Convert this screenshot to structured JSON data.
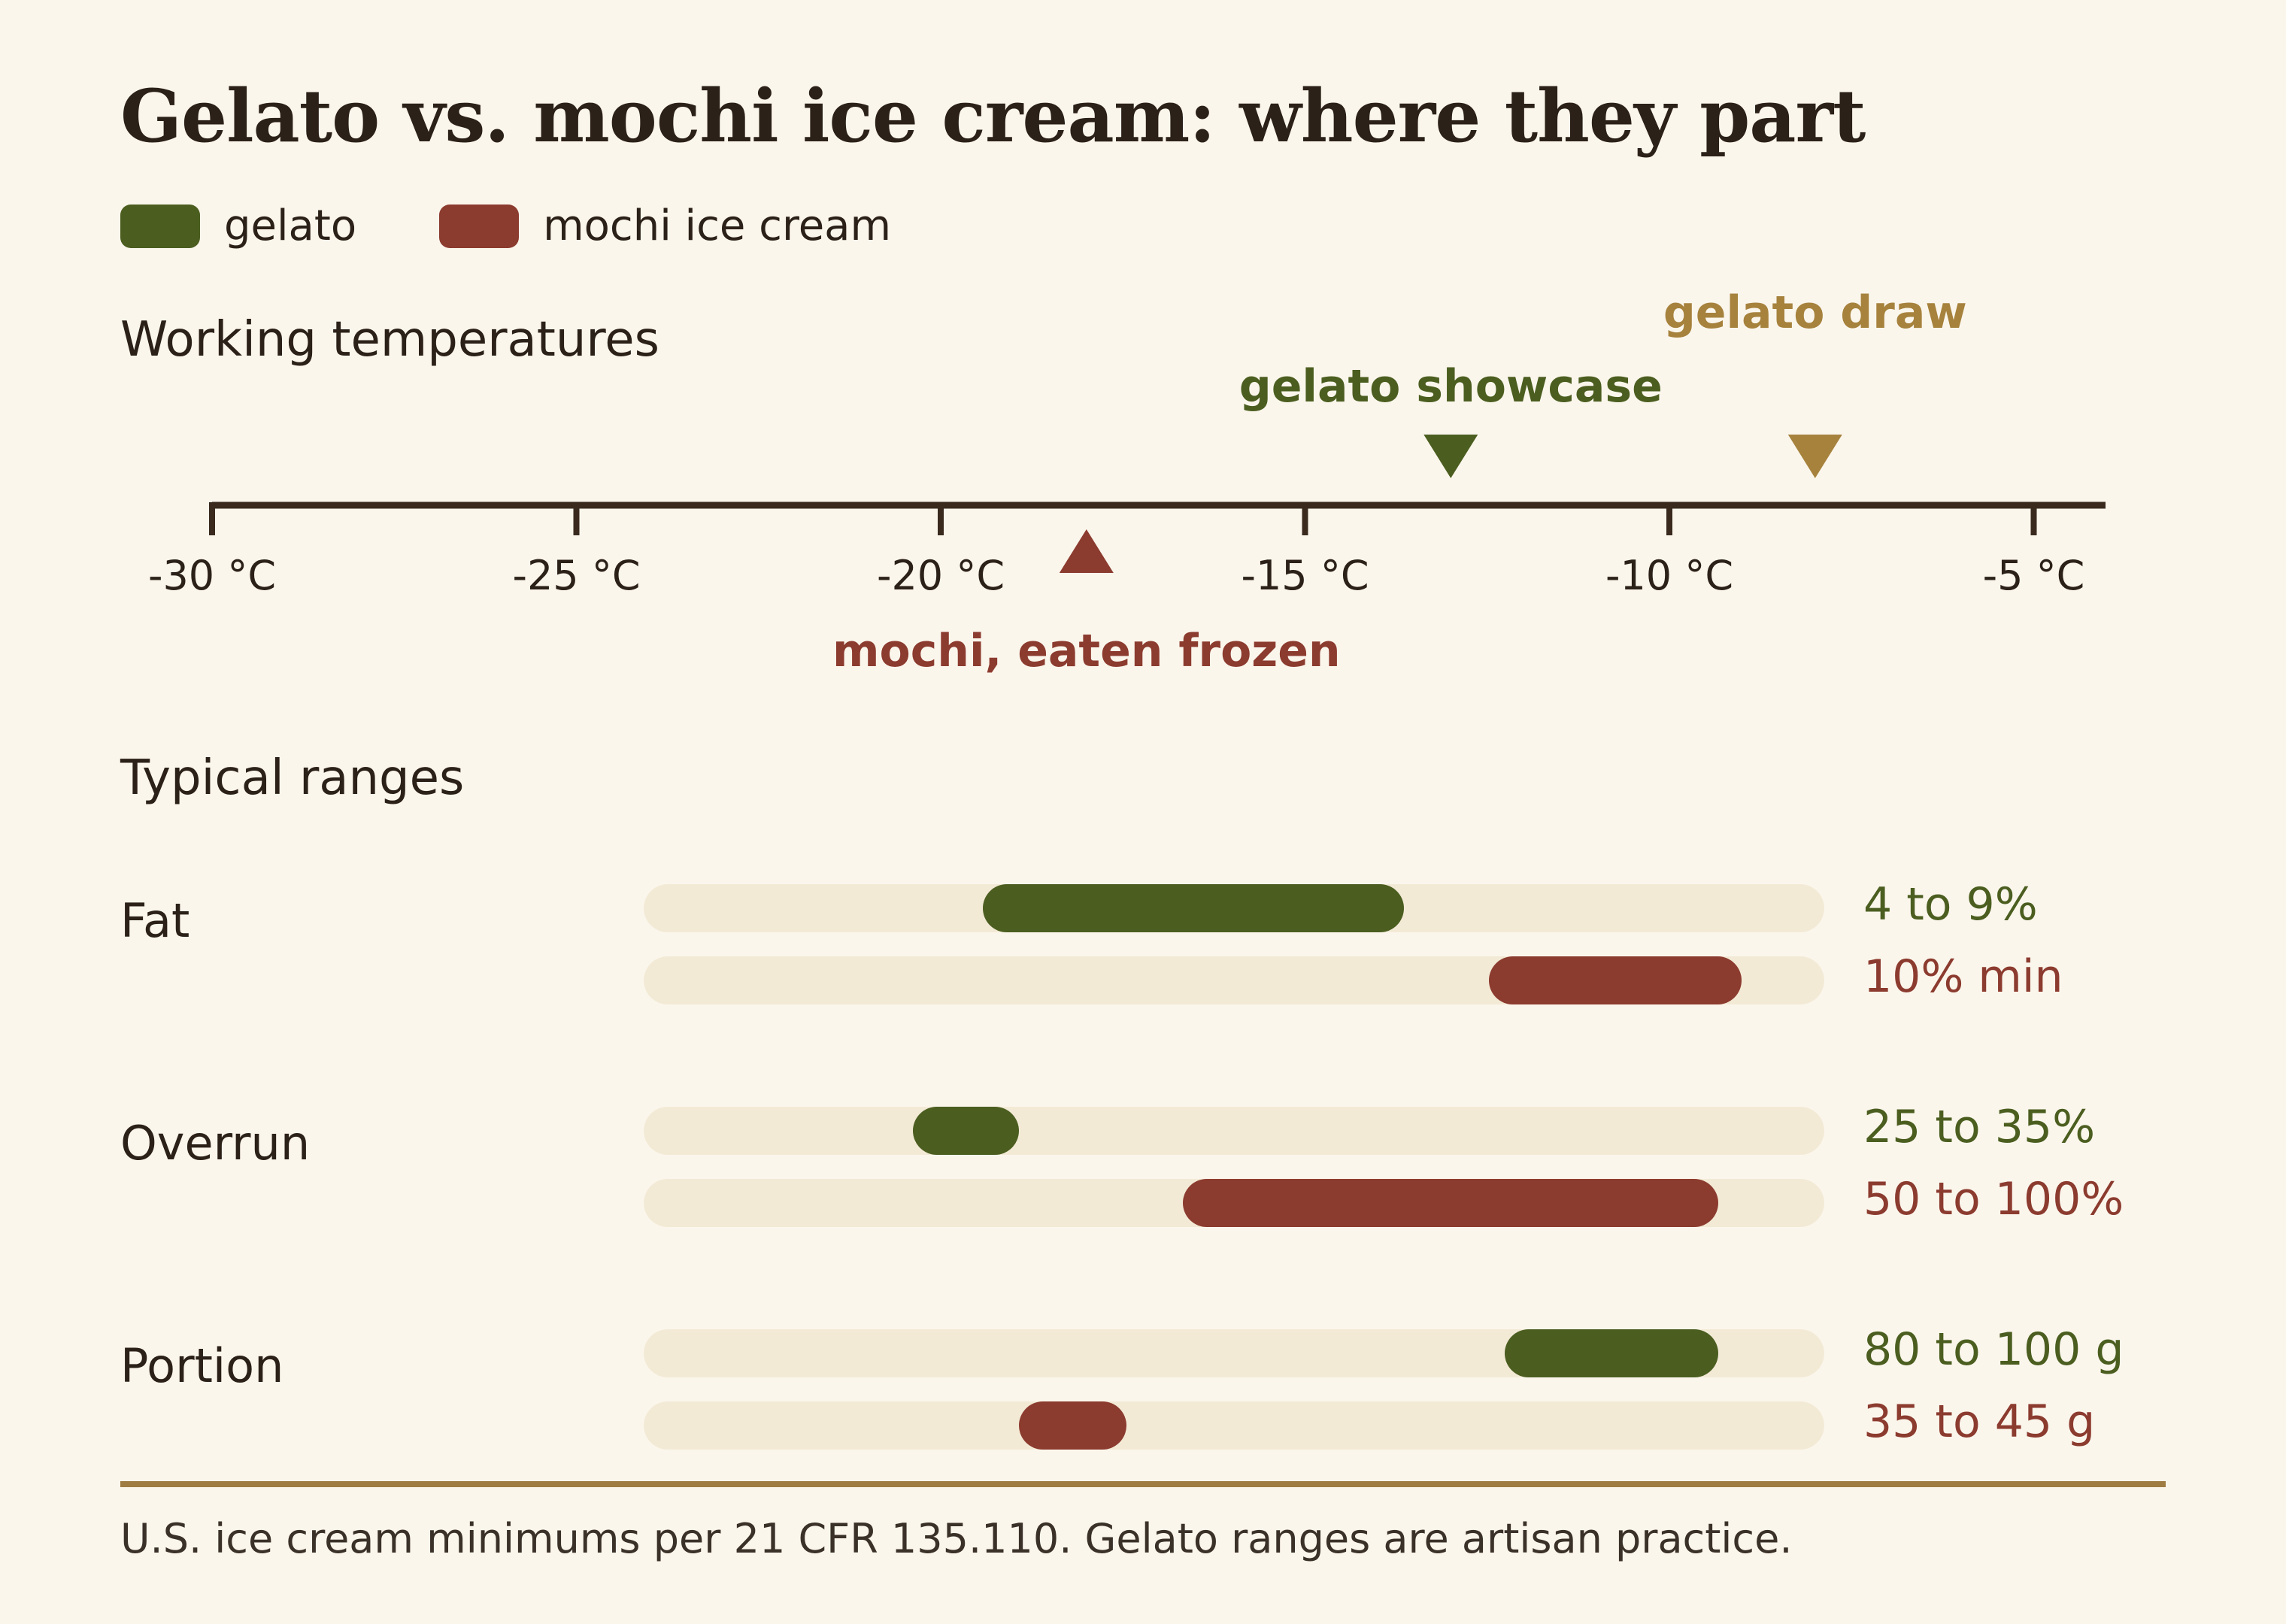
{
  "title": "Gelato vs. mochi ice cream: where they part",
  "legend": [
    {
      "label": "gelato",
      "color": "#4b5e20"
    },
    {
      "label": "mochi ice cream",
      "color": "#8c3b2f"
    }
  ],
  "colors": {
    "gelato": "#4b5e20",
    "mochi": "#8c3b2f",
    "draw": "#a6823d",
    "axis": "#3a2a1e",
    "track": "#f3ead6",
    "rule": "#9f7c42"
  },
  "temperature_section_title": "Working temperatures",
  "ranges_section_title": "Typical ranges",
  "footnote": "U.S. ice cream minimums per 21 CFR 135.110. Gelato ranges are artisan practice.",
  "chart_data": [
    {
      "type": "scatter",
      "title": "Working temperatures",
      "xlim": [
        -30,
        -4
      ],
      "xticks": [
        -30,
        -25,
        -20,
        -15,
        -10,
        -5
      ],
      "tick_labels": [
        "-30 °C",
        "-25 °C",
        "-20 °C",
        "-15 °C",
        "-10 °C",
        "-5 °C"
      ],
      "markers": [
        {
          "label": "gelato showcase",
          "value": -13,
          "side": "above",
          "series": "gelato"
        },
        {
          "label": "gelato draw",
          "value": -8,
          "side": "above",
          "series": "draw"
        },
        {
          "label": "mochi, eaten frozen",
          "value": -18,
          "side": "below",
          "series": "mochi"
        }
      ]
    },
    {
      "type": "bar",
      "title": "Typical ranges",
      "categories": [
        "Fat",
        "Overrun",
        "Portion"
      ],
      "series": [
        {
          "name": "gelato",
          "ranges": [
            {
              "start": 0.287,
              "end": 0.644,
              "label": "4 to 9%"
            },
            {
              "start": 0.228,
              "end": 0.318,
              "label": "25 to 35%"
            },
            {
              "start": 0.729,
              "end": 0.91,
              "label": "80 to 100 g"
            }
          ]
        },
        {
          "name": "mochi ice cream",
          "ranges": [
            {
              "start": 0.716,
              "end": 0.93,
              "label": "10% min"
            },
            {
              "start": 0.457,
              "end": 0.91,
              "label": "50 to 100%"
            },
            {
              "start": 0.318,
              "end": 0.409,
              "label": "35 to 45 g"
            }
          ]
        }
      ]
    }
  ]
}
